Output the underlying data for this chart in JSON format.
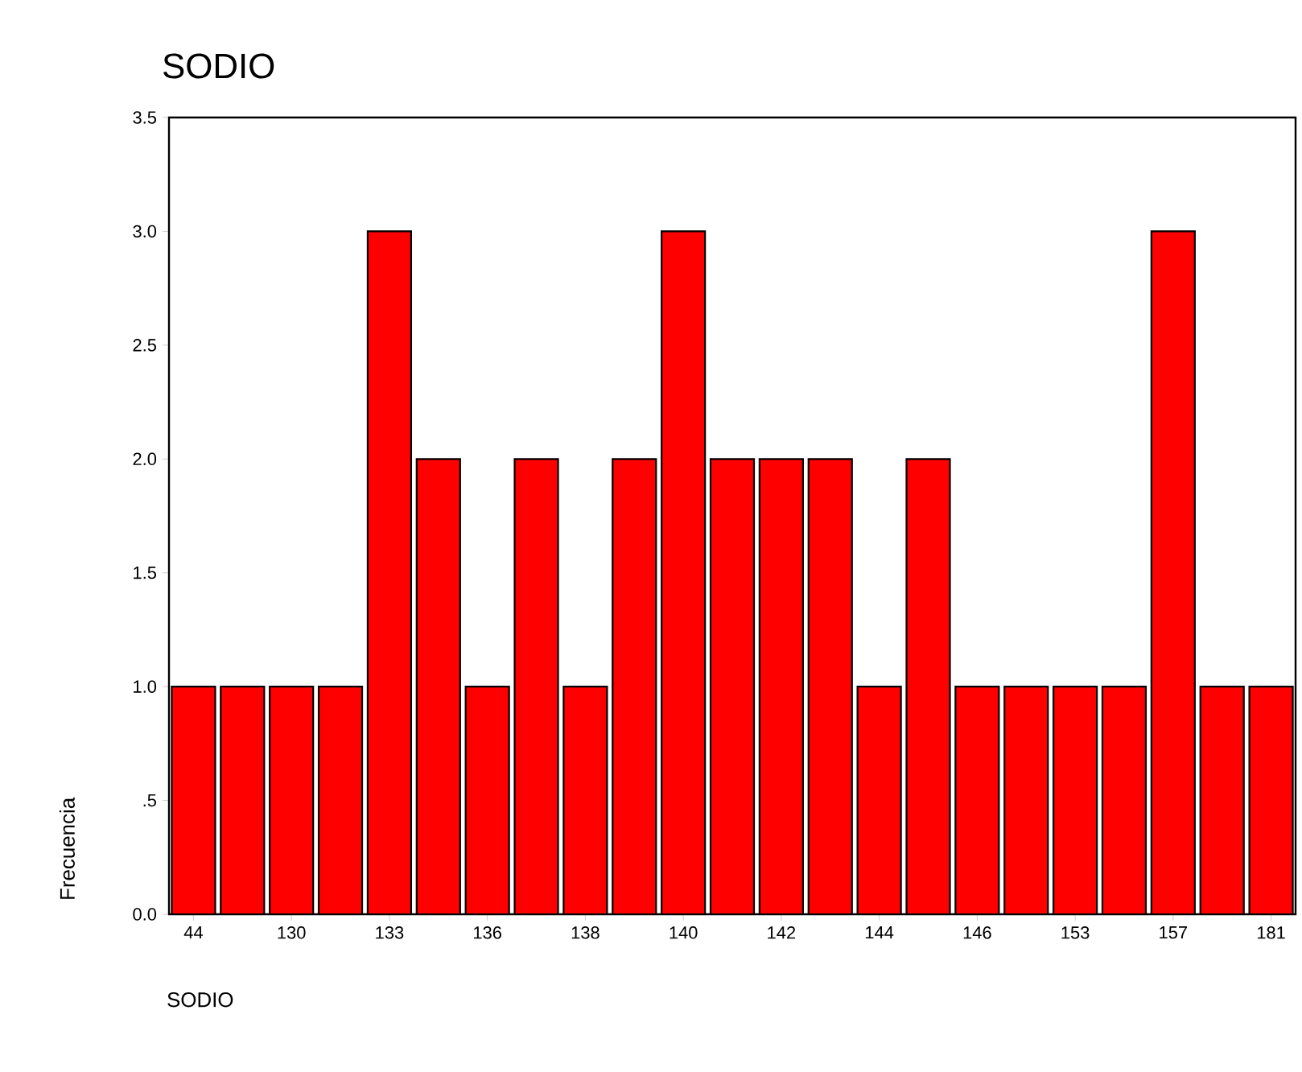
{
  "chart_data": {
    "type": "bar",
    "title": "SODIO",
    "xlabel": "SODIO",
    "ylabel": "Frecuencia",
    "categories": [
      "44",
      null,
      "130",
      null,
      "133",
      null,
      "136",
      null,
      "138",
      null,
      "140",
      null,
      "142",
      null,
      "144",
      null,
      "146",
      null,
      "153",
      null,
      "157",
      null,
      "181"
    ],
    "values": [
      1,
      1,
      1,
      1,
      3,
      2,
      1,
      2,
      1,
      2,
      3,
      2,
      2,
      2,
      1,
      2,
      1,
      1,
      1,
      1,
      3,
      1,
      1
    ],
    "color": "#ff0000",
    "ylim": [
      0,
      3.5
    ],
    "yticks": [
      {
        "value": 0,
        "label": "0.0"
      },
      {
        "value": 0.5,
        "label": ".5"
      },
      {
        "value": 1,
        "label": "1.0"
      },
      {
        "value": 1.5,
        "label": "1.5"
      },
      {
        "value": 2,
        "label": "2.0"
      },
      {
        "value": 2.5,
        "label": "2.5"
      },
      {
        "value": 3,
        "label": "3.0"
      },
      {
        "value": 3.5,
        "label": "3.5"
      }
    ],
    "grid": false
  }
}
